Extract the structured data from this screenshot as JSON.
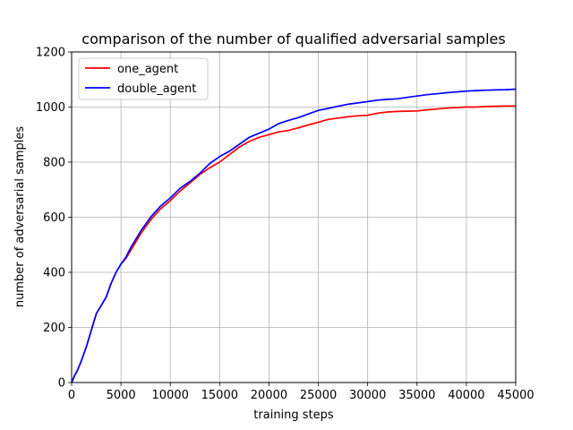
{
  "chart_data": {
    "type": "line",
    "title": "comparison of the number of qualified adversarial samples",
    "xlabel": "training steps",
    "ylabel": "number of adversarial samples",
    "xlim": [
      0,
      45000
    ],
    "ylim": [
      0,
      1200
    ],
    "xticks": [
      0,
      5000,
      10000,
      15000,
      20000,
      25000,
      30000,
      35000,
      40000,
      45000
    ],
    "yticks": [
      0,
      200,
      400,
      600,
      800,
      1000,
      1200
    ],
    "grid": true,
    "legend_position": "upper-left",
    "series": [
      {
        "name": "one_agent",
        "color": "#ff0000",
        "x": [
          0,
          300,
          600,
          1000,
          1500,
          2000,
          2500,
          3000,
          3500,
          4000,
          4500,
          5000,
          5500,
          6000,
          7000,
          8000,
          9000,
          10000,
          11000,
          12000,
          13000,
          14000,
          15000,
          16000,
          17000,
          18000,
          19000,
          20000,
          21000,
          22000,
          23000,
          24000,
          25000,
          26000,
          27000,
          28000,
          29000,
          30000,
          31000,
          32000,
          33000,
          34000,
          35000,
          36000,
          37000,
          38000,
          39000,
          40000,
          41000,
          42000,
          43000,
          44000,
          45000
        ],
        "y": [
          0,
          25,
          45,
          80,
          130,
          190,
          250,
          280,
          310,
          360,
          400,
          430,
          450,
          480,
          540,
          590,
          630,
          660,
          695,
          725,
          755,
          780,
          800,
          828,
          855,
          875,
          890,
          900,
          910,
          915,
          925,
          935,
          945,
          955,
          960,
          965,
          968,
          970,
          978,
          982,
          984,
          985,
          986,
          990,
          993,
          996,
          998,
          1000,
          1000,
          1002,
          1003,
          1004,
          1004
        ]
      },
      {
        "name": "double_agent",
        "color": "#0000ff",
        "x": [
          0,
          300,
          600,
          1000,
          1500,
          2000,
          2500,
          3000,
          3500,
          4000,
          4500,
          5000,
          5500,
          6000,
          7000,
          8000,
          9000,
          10000,
          11000,
          12000,
          13000,
          14000,
          15000,
          16000,
          17000,
          18000,
          19000,
          20000,
          21000,
          22000,
          23000,
          24000,
          25000,
          26000,
          27000,
          28000,
          29000,
          30000,
          31000,
          32000,
          33000,
          34000,
          35000,
          36000,
          37000,
          38000,
          39000,
          40000,
          41000,
          42000,
          43000,
          44000,
          45000
        ],
        "y": [
          0,
          25,
          45,
          80,
          130,
          190,
          250,
          280,
          310,
          360,
          400,
          430,
          455,
          490,
          550,
          600,
          640,
          670,
          705,
          730,
          760,
          795,
          820,
          840,
          865,
          890,
          905,
          920,
          940,
          952,
          962,
          975,
          988,
          995,
          1003,
          1010,
          1015,
          1020,
          1025,
          1028,
          1030,
          1035,
          1040,
          1045,
          1048,
          1052,
          1055,
          1058,
          1060,
          1061,
          1062,
          1063,
          1065
        ]
      }
    ]
  }
}
